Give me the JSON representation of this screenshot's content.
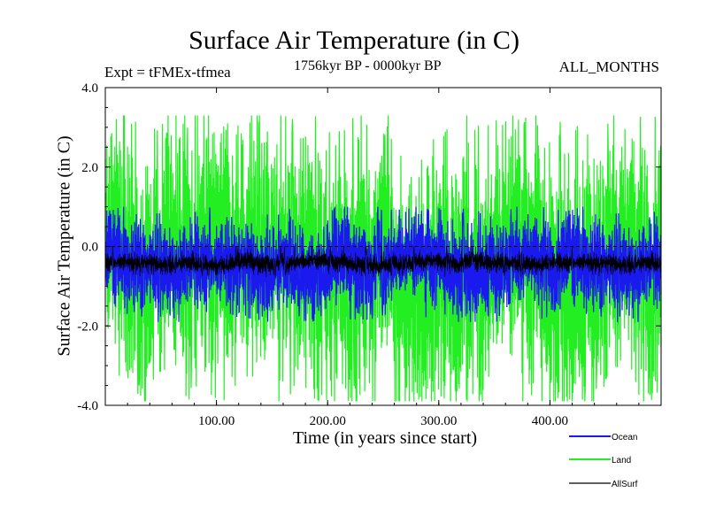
{
  "chart_data": {
    "type": "line",
    "title": "Surface Air Temperature (in C)",
    "subtitle_left": "Expt = tFMEx-tfmea",
    "subtitle_center": "1756kyr BP - 0000kyr BP",
    "subtitle_right": "ALL_MONTHS",
    "xlabel": "Time (in years since start)",
    "ylabel": "Surface Air Temperature (in C)",
    "xlim": [
      0,
      500
    ],
    "ylim": [
      -4.0,
      4.0
    ],
    "x_ticks": [
      100,
      200,
      300,
      400
    ],
    "x_tick_labels": [
      "100.00",
      "200.00",
      "300.00",
      "400.00"
    ],
    "y_ticks": [
      -4,
      -2,
      0,
      2,
      4
    ],
    "y_tick_labels": [
      "-4.0",
      "-2.0",
      "0.0",
      "2.0",
      "4.0"
    ],
    "reference_line": 0.0,
    "series": [
      {
        "name": "Land",
        "color": "#22ee22",
        "mean": -0.4,
        "band": [
          -2.9,
          2.1
        ],
        "extremes": [
          -3.9,
          3.3
        ]
      },
      {
        "name": "Ocean",
        "color": "#1a1aee",
        "mean": -0.4,
        "band": [
          -1.3,
          0.5
        ],
        "extremes": [
          -1.9,
          1.0
        ]
      },
      {
        "name": "AllSurf",
        "color": "#000000",
        "mean": -0.4,
        "band": [
          -0.6,
          -0.2
        ],
        "extremes": [
          -0.8,
          0.0
        ]
      }
    ],
    "legend": [
      "Ocean",
      "Land",
      "AllSurf"
    ],
    "legend_position": "bottom-right"
  }
}
